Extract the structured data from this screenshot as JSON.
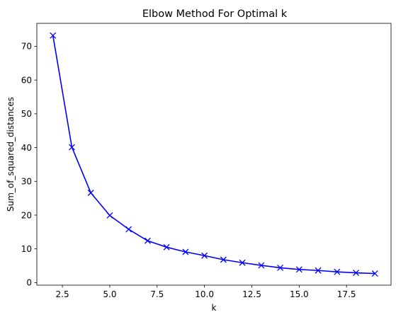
{
  "chart_data": {
    "type": "line",
    "title": "Elbow Method For Optimal k",
    "xlabel": "k",
    "ylabel": "Sum_of_squared_distances",
    "xlim": [
      1.15,
      19.85
    ],
    "ylim": [
      -0.75,
      76.8
    ],
    "xticks": [
      2.5,
      5.0,
      7.5,
      10.0,
      12.5,
      15.0,
      17.5
    ],
    "xtick_labels": [
      "2.5",
      "5.0",
      "7.5",
      "10.0",
      "12.5",
      "15.0",
      "17.5"
    ],
    "yticks": [
      0,
      10,
      20,
      30,
      40,
      50,
      60,
      70
    ],
    "ytick_labels": [
      "0",
      "10",
      "20",
      "30",
      "40",
      "50",
      "60",
      "70"
    ],
    "grid": false,
    "series": [
      {
        "color": "#0000ff",
        "marker": "x",
        "x": [
          2,
          3,
          4,
          5,
          6,
          7,
          8,
          9,
          10,
          11,
          12,
          13,
          14,
          15,
          16,
          17,
          18,
          19
        ],
        "y": [
          73.2,
          40.1,
          26.6,
          19.9,
          15.8,
          12.4,
          10.5,
          9.1,
          8.0,
          6.8,
          5.9,
          5.1,
          4.4,
          3.9,
          3.6,
          3.2,
          2.9,
          2.7
        ]
      }
    ]
  }
}
